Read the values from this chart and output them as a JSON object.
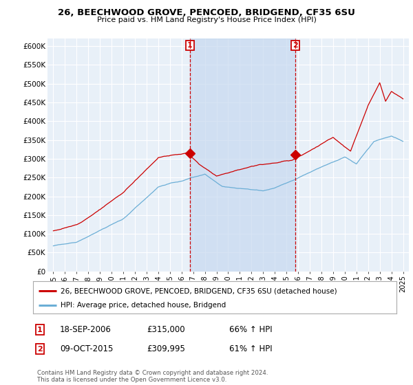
{
  "title": "26, BEECHWOOD GROVE, PENCOED, BRIDGEND, CF35 6SU",
  "subtitle": "Price paid vs. HM Land Registry's House Price Index (HPI)",
  "legend_line1": "26, BEECHWOOD GROVE, PENCOED, BRIDGEND, CF35 6SU (detached house)",
  "legend_line2": "HPI: Average price, detached house, Bridgend",
  "sale1_date": "18-SEP-2006",
  "sale1_price": "£315,000",
  "sale1_hpi": "66% ↑ HPI",
  "sale2_date": "09-OCT-2015",
  "sale2_price": "£309,995",
  "sale2_hpi": "61% ↑ HPI",
  "footer": "Contains HM Land Registry data © Crown copyright and database right 2024.\nThis data is licensed under the Open Government Licence v3.0.",
  "hpi_color": "#6baed6",
  "price_color": "#cc0000",
  "marker_color": "#cc0000",
  "shade_color": "#c6d9f0",
  "sale1_x": 2006.72,
  "sale1_y": 315000,
  "sale2_x": 2015.77,
  "sale2_y": 309995,
  "ylim_min": 0,
  "ylim_max": 620000,
  "xlim_min": 1994.5,
  "xlim_max": 2025.5,
  "yticks": [
    0,
    50000,
    100000,
    150000,
    200000,
    250000,
    300000,
    350000,
    400000,
    450000,
    500000,
    550000,
    600000
  ],
  "ytick_labels": [
    "£0",
    "£50K",
    "£100K",
    "£150K",
    "£200K",
    "£250K",
    "£300K",
    "£350K",
    "£400K",
    "£450K",
    "£500K",
    "£550K",
    "£600K"
  ],
  "xticks": [
    1995,
    1996,
    1997,
    1998,
    1999,
    2000,
    2001,
    2002,
    2003,
    2004,
    2005,
    2006,
    2007,
    2008,
    2009,
    2010,
    2011,
    2012,
    2013,
    2014,
    2015,
    2016,
    2017,
    2018,
    2019,
    2020,
    2021,
    2022,
    2023,
    2024,
    2025
  ]
}
